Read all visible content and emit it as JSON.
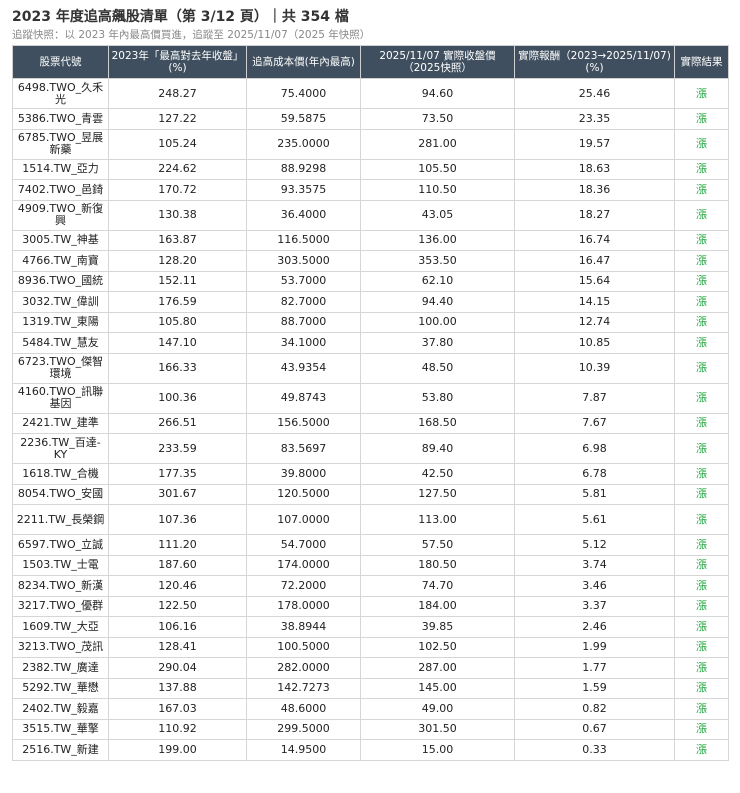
{
  "title": "2023 年度追高飆股清單（第 3/12 頁）｜共 354 檔",
  "subtitle": "追蹤快照：以 2023 年內最高價買進，追蹤至 2025/11/07（2025 年快照）",
  "headers": [
    "股票代號",
    "2023年「最高對去年收盤」(%)",
    "追高成本價(年內最高)",
    "2025/11/07 實際收盤價（2025快照）",
    "實際報酬（2023→2025/11/07) (%)",
    "實際結果"
  ],
  "rows": [
    {
      "code": "6498.TWO_久禾光",
      "high": "248.27",
      "cost": "75.4000",
      "close": "94.60",
      "ret": "25.46",
      "result": "漲"
    },
    {
      "code": "5386.TWO_青雲",
      "high": "127.22",
      "cost": "59.5875",
      "close": "73.50",
      "ret": "23.35",
      "result": "漲"
    },
    {
      "code": "6785.TWO_昱展新藥",
      "high": "105.24",
      "cost": "235.0000",
      "close": "281.00",
      "ret": "19.57",
      "result": "漲"
    },
    {
      "code": "1514.TW_亞力",
      "high": "224.62",
      "cost": "88.9298",
      "close": "105.50",
      "ret": "18.63",
      "result": "漲"
    },
    {
      "code": "7402.TWO_邑錡",
      "high": "170.72",
      "cost": "93.3575",
      "close": "110.50",
      "ret": "18.36",
      "result": "漲"
    },
    {
      "code": "4909.TWO_新復興",
      "high": "130.38",
      "cost": "36.4000",
      "close": "43.05",
      "ret": "18.27",
      "result": "漲"
    },
    {
      "code": "3005.TW_神基",
      "high": "163.87",
      "cost": "116.5000",
      "close": "136.00",
      "ret": "16.74",
      "result": "漲"
    },
    {
      "code": "4766.TW_南寶",
      "high": "128.20",
      "cost": "303.5000",
      "close": "353.50",
      "ret": "16.47",
      "result": "漲"
    },
    {
      "code": "8936.TWO_國統",
      "high": "152.11",
      "cost": "53.7000",
      "close": "62.10",
      "ret": "15.64",
      "result": "漲"
    },
    {
      "code": "3032.TW_偉訓",
      "high": "176.59",
      "cost": "82.7000",
      "close": "94.40",
      "ret": "14.15",
      "result": "漲"
    },
    {
      "code": "1319.TW_東陽",
      "high": "105.80",
      "cost": "88.7000",
      "close": "100.00",
      "ret": "12.74",
      "result": "漲"
    },
    {
      "code": "5484.TW_慧友",
      "high": "147.10",
      "cost": "34.1000",
      "close": "37.80",
      "ret": "10.85",
      "result": "漲"
    },
    {
      "code": "6723.TWO_傑智環境",
      "high": "166.33",
      "cost": "43.9354",
      "close": "48.50",
      "ret": "10.39",
      "result": "漲"
    },
    {
      "code": "4160.TWO_訊聯基因",
      "high": "100.36",
      "cost": "49.8743",
      "close": "53.80",
      "ret": "7.87",
      "result": "漲"
    },
    {
      "code": "2421.TW_建準",
      "high": "266.51",
      "cost": "156.5000",
      "close": "168.50",
      "ret": "7.67",
      "result": "漲"
    },
    {
      "code": "2236.TW_百達-KY",
      "high": "233.59",
      "cost": "83.5697",
      "close": "89.40",
      "ret": "6.98",
      "result": "漲"
    },
    {
      "code": "1618.TW_合機",
      "high": "177.35",
      "cost": "39.8000",
      "close": "42.50",
      "ret": "6.78",
      "result": "漲"
    },
    {
      "code": "8054.TWO_安國",
      "high": "301.67",
      "cost": "120.5000",
      "close": "127.50",
      "ret": "5.81",
      "result": "漲"
    },
    {
      "code": "2211.TW_長榮鋼",
      "high": "107.36",
      "cost": "107.0000",
      "close": "113.00",
      "ret": "5.61",
      "result": "漲"
    },
    {
      "code": "6597.TWO_立誠",
      "high": "111.20",
      "cost": "54.7000",
      "close": "57.50",
      "ret": "5.12",
      "result": "漲"
    },
    {
      "code": "1503.TW_士電",
      "high": "187.60",
      "cost": "174.0000",
      "close": "180.50",
      "ret": "3.74",
      "result": "漲"
    },
    {
      "code": "8234.TWO_新漢",
      "high": "120.46",
      "cost": "72.2000",
      "close": "74.70",
      "ret": "3.46",
      "result": "漲"
    },
    {
      "code": "3217.TWO_優群",
      "high": "122.50",
      "cost": "178.0000",
      "close": "184.00",
      "ret": "3.37",
      "result": "漲"
    },
    {
      "code": "1609.TW_大亞",
      "high": "106.16",
      "cost": "38.8944",
      "close": "39.85",
      "ret": "2.46",
      "result": "漲"
    },
    {
      "code": "3213.TWO_茂訊",
      "high": "128.41",
      "cost": "100.5000",
      "close": "102.50",
      "ret": "1.99",
      "result": "漲"
    },
    {
      "code": "2382.TW_廣達",
      "high": "290.04",
      "cost": "282.0000",
      "close": "287.00",
      "ret": "1.77",
      "result": "漲"
    },
    {
      "code": "5292.TW_華懋",
      "high": "137.88",
      "cost": "142.7273",
      "close": "145.00",
      "ret": "1.59",
      "result": "漲"
    },
    {
      "code": "2402.TW_毅嘉",
      "high": "167.03",
      "cost": "48.6000",
      "close": "49.00",
      "ret": "0.82",
      "result": "漲"
    },
    {
      "code": "3515.TW_華擎",
      "high": "110.92",
      "cost": "299.5000",
      "close": "301.50",
      "ret": "0.67",
      "result": "漲"
    },
    {
      "code": "2516.TW_新建",
      "high": "199.00",
      "cost": "14.9500",
      "close": "15.00",
      "ret": "0.33",
      "result": "漲"
    }
  ]
}
